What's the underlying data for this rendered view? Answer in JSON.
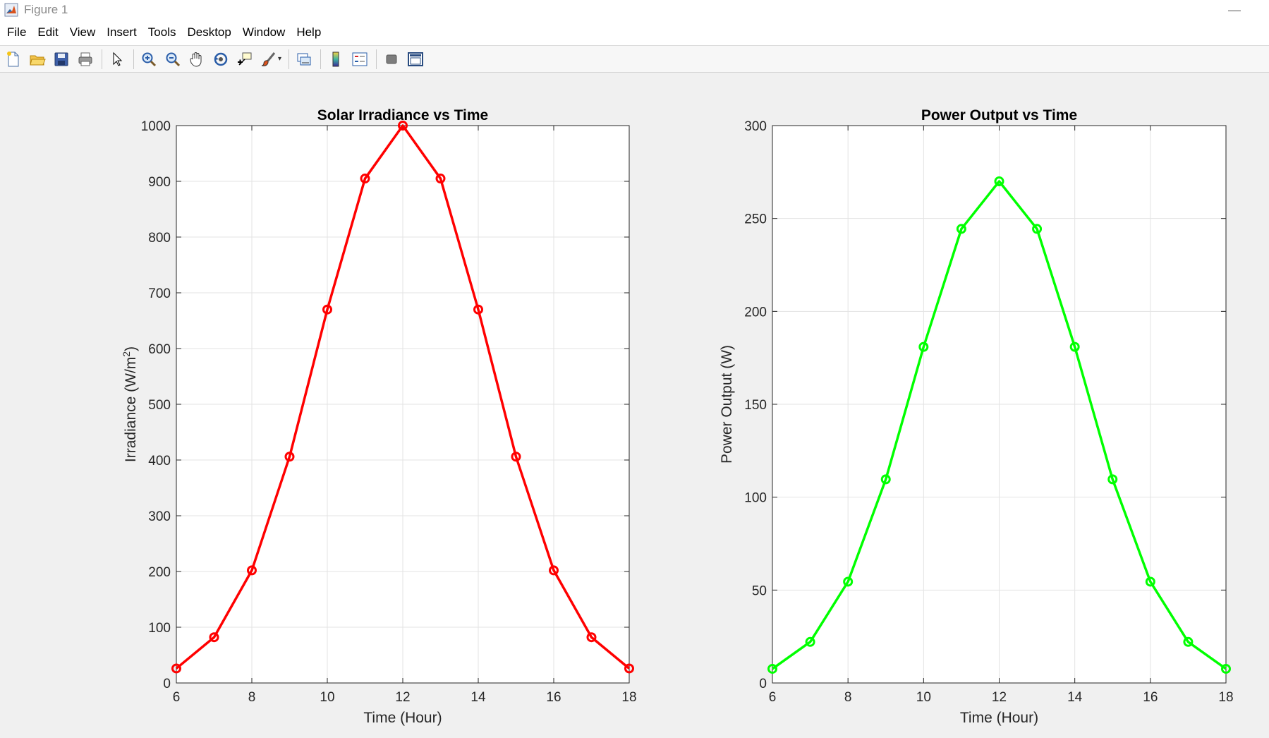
{
  "window": {
    "title": "Figure 1",
    "minimize_glyph": "—"
  },
  "menu": {
    "items": [
      "File",
      "Edit",
      "View",
      "Insert",
      "Tools",
      "Desktop",
      "Window",
      "Help"
    ]
  },
  "toolbar": {
    "buttons": [
      "new-figure-icon",
      "open-file-icon",
      "save-icon",
      "print-icon",
      "select-arrow-icon",
      "zoom-in-icon",
      "zoom-out-icon",
      "pan-hand-icon",
      "rotate-3d-icon",
      "data-cursor-icon",
      "brush-icon",
      "link-plot-icon",
      "colorbar-icon",
      "legend-icon",
      "hide-plot-tools-icon",
      "show-plot-tools-icon"
    ]
  },
  "colors": {
    "series1": "#ff0000",
    "series2": "#00ff00",
    "grid": "#e3e3e3",
    "axis": "#262626"
  },
  "chart_data": [
    {
      "type": "line",
      "title": "Solar Irradiance vs Time",
      "xlabel": "Time (Hour)",
      "ylabel_main": "Irradiance (W/m",
      "ylabel_sup": "2",
      "ylabel_end": ")",
      "x": [
        6,
        7,
        8,
        9,
        10,
        11,
        12,
        13,
        14,
        15,
        16,
        17,
        18
      ],
      "y": [
        26,
        82,
        202,
        406,
        670,
        905,
        1000,
        905,
        670,
        406,
        202,
        82,
        26
      ],
      "xlim": [
        6,
        18
      ],
      "ylim": [
        0,
        1000
      ],
      "xticks": [
        "6",
        "8",
        "10",
        "12",
        "14",
        "16",
        "18"
      ],
      "yticks": [
        "0",
        "100",
        "200",
        "300",
        "400",
        "500",
        "600",
        "700",
        "800",
        "900",
        "1000"
      ],
      "grid": true,
      "marker": "circle",
      "color": "#ff0000"
    },
    {
      "type": "line",
      "title": "Power Output vs Time",
      "xlabel": "Time (Hour)",
      "ylabel_main": "Power Output (W)",
      "ylabel_sup": "",
      "ylabel_end": "",
      "x": [
        6,
        7,
        8,
        9,
        10,
        11,
        12,
        13,
        14,
        15,
        16,
        17,
        18
      ],
      "y": [
        7.6,
        22.1,
        54.5,
        109.6,
        180.9,
        244.4,
        270,
        244.4,
        180.9,
        109.6,
        54.5,
        22.1,
        7.6
      ],
      "xlim": [
        6,
        18
      ],
      "ylim": [
        0,
        300
      ],
      "xticks": [
        "6",
        "8",
        "10",
        "12",
        "14",
        "16",
        "18"
      ],
      "yticks": [
        "0",
        "50",
        "100",
        "150",
        "200",
        "250",
        "300"
      ],
      "grid": true,
      "marker": "circle",
      "color": "#00ff00"
    }
  ]
}
